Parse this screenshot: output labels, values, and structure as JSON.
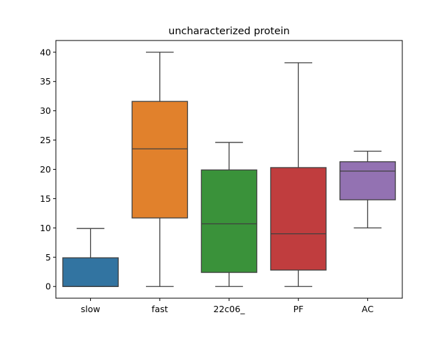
{
  "chart_data": {
    "type": "box",
    "title": "uncharacterized protein",
    "xlabel": "",
    "ylabel": "",
    "ylim": [
      -2,
      42
    ],
    "yticks": [
      0,
      5,
      10,
      15,
      20,
      25,
      30,
      35,
      40
    ],
    "categories": [
      "slow",
      "fast",
      "22c06_",
      "PF",
      "AC"
    ],
    "boxes": [
      {
        "category": "slow",
        "whisker_low": 0,
        "q1": 0,
        "median": 0,
        "q3": 4.9,
        "whisker_high": 9.9,
        "color": "#3274a1"
      },
      {
        "category": "fast",
        "whisker_low": 0,
        "q1": 11.7,
        "median": 23.5,
        "q3": 31.6,
        "whisker_high": 40.0,
        "color": "#e1812c"
      },
      {
        "category": "22c06_",
        "whisker_low": 0,
        "q1": 2.4,
        "median": 10.7,
        "q3": 19.9,
        "whisker_high": 24.6,
        "color": "#3a923a"
      },
      {
        "category": "PF",
        "whisker_low": 0,
        "q1": 2.8,
        "median": 9.0,
        "q3": 20.3,
        "whisker_high": 38.2,
        "color": "#c03d3e"
      },
      {
        "category": "AC",
        "whisker_low": 10.0,
        "q1": 14.8,
        "median": 19.7,
        "q3": 21.3,
        "whisker_high": 23.1,
        "color": "#9372b2"
      }
    ],
    "grid": false,
    "legend": "none"
  }
}
